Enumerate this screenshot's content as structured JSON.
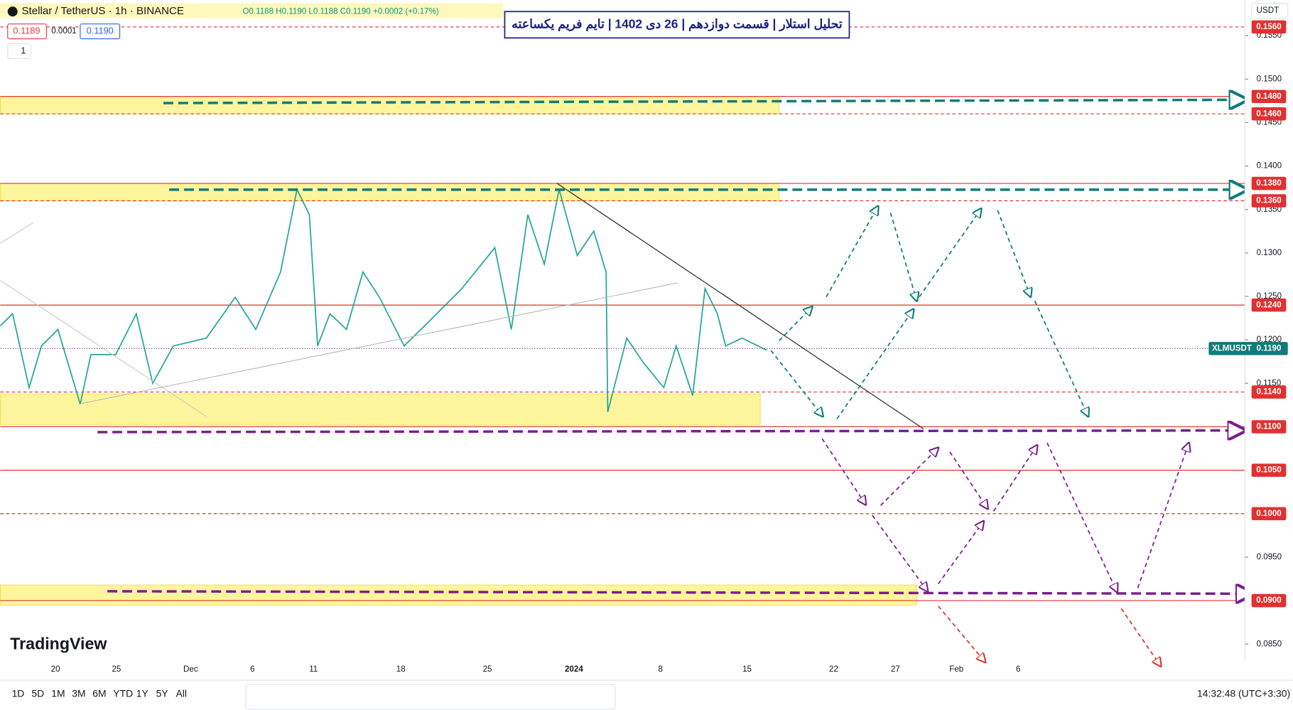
{
  "header": {
    "symbol": "Stellar / TetherUS · 1h · BINANCE",
    "ohlc": "O0.1188 H0.1190 L0.1188 C0.1190 +0.0002 (+0.17%)",
    "bid": "0.1189",
    "spread": "0.0001",
    "ask": "0.1190",
    "interval": "1",
    "currency": "USDT"
  },
  "title": "تحلیل استلار | قسمت دوازدهم | 26 دی 1402 | تایم فریم یکساعته",
  "price_chart": {
    "ylim": [
      0.0832,
      0.1591
    ],
    "yticks": [
      {
        "value": 0.155,
        "label": "0.1550"
      },
      {
        "value": 0.15,
        "label": "0.1500"
      },
      {
        "value": 0.145,
        "label": "0.1450"
      },
      {
        "value": 0.14,
        "label": "0.1400"
      },
      {
        "value": 0.135,
        "label": "0.1350"
      },
      {
        "value": 0.13,
        "label": "0.1300"
      },
      {
        "value": 0.125,
        "label": "0.1250"
      },
      {
        "value": 0.12,
        "label": "0.1200"
      },
      {
        "value": 0.115,
        "label": "0.1150"
      },
      {
        "value": 0.095,
        "label": "0.0950"
      },
      {
        "value": 0.085,
        "label": "0.0850"
      }
    ],
    "levels": [
      {
        "value": 0.156,
        "label": "0.1560",
        "style": "dashed"
      },
      {
        "value": 0.148,
        "label": "0.1480",
        "style": "solid"
      },
      {
        "value": 0.146,
        "label": "0.1460",
        "style": "dashed"
      },
      {
        "value": 0.138,
        "label": "0.1380",
        "style": "solid"
      },
      {
        "value": 0.136,
        "label": "0.1360",
        "style": "dashed"
      },
      {
        "value": 0.124,
        "label": "0.1240",
        "style": "solid"
      },
      {
        "value": 0.114,
        "label": "0.1140",
        "style": "dashed"
      },
      {
        "value": 0.11,
        "label": "0.1100",
        "style": "solid"
      },
      {
        "value": 0.105,
        "label": "0.1050",
        "style": "solid"
      },
      {
        "value": 0.1,
        "label": "0.1000",
        "style": "dashed"
      },
      {
        "value": 0.09,
        "label": "0.0900",
        "style": "solid"
      }
    ],
    "level_color": "#e03131",
    "zones": [
      [
        0.146,
        0.148
      ],
      [
        0.136,
        0.138
      ],
      [
        0.1102,
        0.1138
      ],
      [
        0.0895,
        0.0918
      ]
    ],
    "zone_color": "#fff59d",
    "price_path": [
      0.1216,
      0.123,
      0.1145,
      0.1193,
      0.1212,
      0.1126,
      0.1183,
      0.1183,
      0.123,
      0.115,
      0.1193,
      0.1202,
      0.1249,
      0.1212,
      0.1278,
      0.1373,
      0.1344,
      0.1193,
      0.123,
      0.1212,
      0.1278,
      0.1249,
      0.1193,
      0.1221,
      0.1259,
      0.1306,
      0.1212,
      0.1344,
      0.1287,
      0.1373,
      0.1297,
      0.1325,
      0.1278,
      0.1117,
      0.1202,
      0.1174,
      0.1145,
      0.1193,
      0.1136,
      0.1259,
      0.123,
      0.1193,
      0.1202,
      0.1188
    ],
    "path_color": "#26a69a",
    "last_price": {
      "name": "XLMUSDT",
      "value": 0.119,
      "label": "0.1190"
    },
    "x_labels": [
      "20",
      "25",
      "Dec",
      "6",
      "11",
      "18",
      "25",
      "2024",
      "8",
      "15",
      "22",
      "27",
      "Feb",
      "6"
    ]
  },
  "logo": "TradingView",
  "toolbar": {
    "ranges": [
      "1D",
      "5D",
      "1M",
      "3M",
      "6M",
      "YTD",
      "1Y",
      "5Y",
      "All"
    ],
    "clock": "14:32:48 (UTC+3:30)"
  }
}
